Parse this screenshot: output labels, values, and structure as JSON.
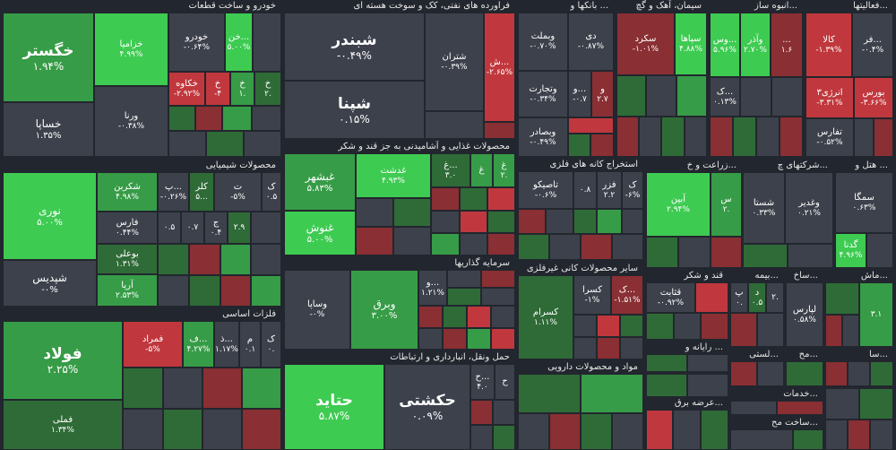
{
  "colors": {
    "up_strong": "#3ecb52",
    "up": "#379c47",
    "up_weak": "#2f6b37",
    "down_weak": "#8a2f33",
    "down": "#c0383d",
    "flat": "#3d414b",
    "bg": "#22262e"
  },
  "sectors": {
    "auto": "خودرو و ساخت قطعات",
    "refinery": "فراورده های نفتی، کک و سوخت هسته ای",
    "banks": "بانکها و ...",
    "cement": "سیمان، آهک و گچ",
    "mass": "انبوه ساز...",
    "activities": "فعالیتها...",
    "chemical": "محصولات شیمیایی",
    "food": "محصولات غذایی و آشامیدنی به جز قند و شکر",
    "coal": "استخراج کانه های فلزی",
    "agri": "زراعت و خ...",
    "companies": "شرکتهای چ...",
    "hotel": "هتل و ...",
    "invest": "سرمایه گذاریها",
    "nonmetal": "سایر محصولات کانی غیرفلزی",
    "sugar": "قند و شکر",
    "insurance": "بیمه...",
    "build": "ساخ...",
    "machine": "ماش...",
    "metals": "فلزات اساسی",
    "computer": "رایانه و ...",
    "transport": "حمل ونقل، انبارداری و ارتباطات",
    "pharma": "مواد و محصولات دارویی",
    "textile": "لستی...",
    "equip": "مح...",
    "services": "خدمات...",
    "electric": "عرضه برق...",
    "other_build": "ساخت مح...",
    "etc": "سا..."
  },
  "tiles": {
    "khegostar": {
      "name": "خگستر",
      "pct": "۱.۹۴%"
    },
    "khazamia": {
      "name": "خزامیا",
      "pct": "۴.۹۹%"
    },
    "khodro": {
      "name": "خودرو",
      "pct": "-۰.۶۴%"
    },
    "khan": {
      "name": "خن...",
      "pct": "۵.۰۰%"
    },
    "khakaveh": {
      "name": "خکاوه",
      "pct": "-۲.۹۲%"
    },
    "kh1": {
      "name": "خ",
      "pct": "-۴"
    },
    "kh2": {
      "name": "خ",
      "pct": "۱."
    },
    "kh3": {
      "name": "خ",
      "pct": "۲."
    },
    "khsapa": {
      "name": "خساپا",
      "pct": "۱.۳۵%"
    },
    "vorna": {
      "name": "ورنا",
      "pct": "-۰.۳۸%"
    },
    "shebandar": {
      "name": "شبندر",
      "pct": "-۰.۴۹%"
    },
    "shetran": {
      "name": "شتران",
      "pct": "-۰.۳۹%"
    },
    "sh": {
      "name": "ش...",
      "pct": "-۲.۶۵%"
    },
    "shepna": {
      "name": "شپنا",
      "pct": "۰.۱۵%"
    },
    "vbemellat": {
      "name": "وبملت",
      "pct": "-۰.۷۰%"
    },
    "dey": {
      "name": "دی",
      "pct": "-۰.۸۷%"
    },
    "vtejarat": {
      "name": "وتجارت",
      "pct": "-۰.۳۴%"
    },
    "v": {
      "name": "و...",
      "pct": "-۰.۷"
    },
    "v2": {
      "name": "و",
      "pct": "۲.۷"
    },
    "vbsader": {
      "name": "وبصادر",
      "pct": "-۰.۴۹%"
    },
    "sakord": {
      "name": "سکرد",
      "pct": "-۱.۰۱%"
    },
    "sepaha": {
      "name": "سپاها",
      "pct": "۴.۸۸%"
    },
    "vas": {
      "name": "وس...",
      "pct": "۵.۹۶%"
    },
    "vaazar": {
      "name": "وآذر",
      "pct": "۲.۷۰%"
    },
    "mass1": {
      "name": "...",
      "pct": "۱.۶"
    },
    "kala": {
      "name": "کالا",
      "pct": "-۱.۳۹%"
    },
    "fa": {
      "name": "فر...",
      "pct": "-۰.۴%"
    },
    "k": {
      "name": "ک...",
      "pct": "۰.۱۳%"
    },
    "energy3": {
      "name": "انرژی۳",
      "pct": "-۳.۳۱%"
    },
    "boors": {
      "name": "بورس",
      "pct": "-۳.۶۶%"
    },
    "tafaris": {
      "name": "تفارس",
      "pct": "-۰.۵۲%"
    },
    "noori": {
      "name": "نوری",
      "pct": "۵.۰۰%"
    },
    "shekarbon": {
      "name": "شکربن",
      "pct": "۴.۹۸%"
    },
    "pe": {
      "name": "پ...",
      "pct": "-۰.۲۶%"
    },
    "kalar": {
      "name": "کلر",
      "pct": "۵..."
    },
    "te": {
      "name": "ت",
      "pct": "-۵%"
    },
    "ke": {
      "name": "ک",
      "pct": "۰.۵"
    },
    "chem1": {
      "name": "",
      "pct": "۰.۵"
    },
    "chem2": {
      "name": "",
      "pct": "۰.۷"
    },
    "chem3": {
      "name": "ج",
      "pct": "۰.۴"
    },
    "chem4": {
      "name": "",
      "pct": "۲.۹"
    },
    "fars": {
      "name": "فارس",
      "pct": "۰.۴۴%"
    },
    "boali": {
      "name": "بوعلی",
      "pct": "۱.۳۱%"
    },
    "arya": {
      "name": "آریا",
      "pct": "۲.۵۳%"
    },
    "shepdis": {
      "name": "شپدیس",
      "pct": "-۰%"
    },
    "ghshahr": {
      "name": "غبشهر",
      "pct": "۵.۸۳%"
    },
    "ghdasht": {
      "name": "غدشت",
      "pct": "۴.۹۳%"
    },
    "gh1": {
      "name": "غ...",
      "pct": "۳.۰"
    },
    "gh2": {
      "name": "غ",
      "pct": ""
    },
    "gh3": {
      "name": "غ",
      "pct": "۲."
    },
    "ghnoosh": {
      "name": "غنوش",
      "pct": "۵.۰۰%"
    },
    "tapico": {
      "name": "تاصیکو",
      "pct": "-۰.۶%"
    },
    "coal1": {
      "name": "",
      "pct": "۰.۸"
    },
    "fazar": {
      "name": "فزر",
      "pct": "۲.۲"
    },
    "coal2": {
      "name": "ک",
      "pct": "-۶%"
    },
    "abin": {
      "name": "آبین",
      "pct": "۲.۹۴%"
    },
    "s": {
      "name": "س",
      "pct": "۲."
    },
    "shasta": {
      "name": "شستا",
      "pct": "۰.۳۳%"
    },
    "vghadir": {
      "name": "وغدیر",
      "pct": "۰.۲۱%"
    },
    "semga": {
      "name": "سمگا",
      "pct": "۰.۶۳%"
    },
    "gedena": {
      "name": "گدنا",
      "pct": "۴.۹۶%"
    },
    "vasapa": {
      "name": "وساپا",
      "pct": "-۰%"
    },
    "vbargh": {
      "name": "وبرق",
      "pct": "۳.۰۰%"
    },
    "vo": {
      "name": "و...",
      "pct": "۱.۲۱%"
    },
    "kasram": {
      "name": "کسرام",
      "pct": "۱.۱۱%"
    },
    "kasra": {
      "name": "کسرا",
      "pct": "-۱%"
    },
    "ka": {
      "name": "ک...",
      "pct": "-۱.۵۱%"
    },
    "ghathabit": {
      "name": "قثابت",
      "pct": "-۰.۹۲%"
    },
    "pe2": {
      "name": "پ",
      "pct": "۰."
    },
    "de": {
      "name": "د",
      "pct": "۰.۵"
    },
    "de2": {
      "name": "",
      "pct": "۲."
    },
    "lapars": {
      "name": "لپارس",
      "pct": "۰.۵۸%"
    },
    "m31": {
      "name": "",
      "pct": "۳.۱"
    },
    "fooolad": {
      "name": "فولاد",
      "pct": "۲.۲۵%"
    },
    "femrad": {
      "name": "فمراد",
      "pct": "-۵%"
    },
    "f": {
      "name": "ف...",
      "pct": "۴.۲۷%"
    },
    "z": {
      "name": "ذ...",
      "pct": "۱.۱۷%"
    },
    "m": {
      "name": "م",
      "pct": "۰.۱"
    },
    "k2": {
      "name": "ک",
      "pct": "۰."
    },
    "femli": {
      "name": "فملی",
      "pct": "۱.۳۴%"
    },
    "hatid": {
      "name": "حتاید",
      "pct": "۵.۸۷%"
    },
    "hakashti": {
      "name": "حکشتی",
      "pct": "۰.۰۹%"
    },
    "ha1": {
      "name": "ح...",
      "pct": "۴.۰"
    },
    "ha2": {
      "name": "ح",
      "pct": ""
    }
  }
}
